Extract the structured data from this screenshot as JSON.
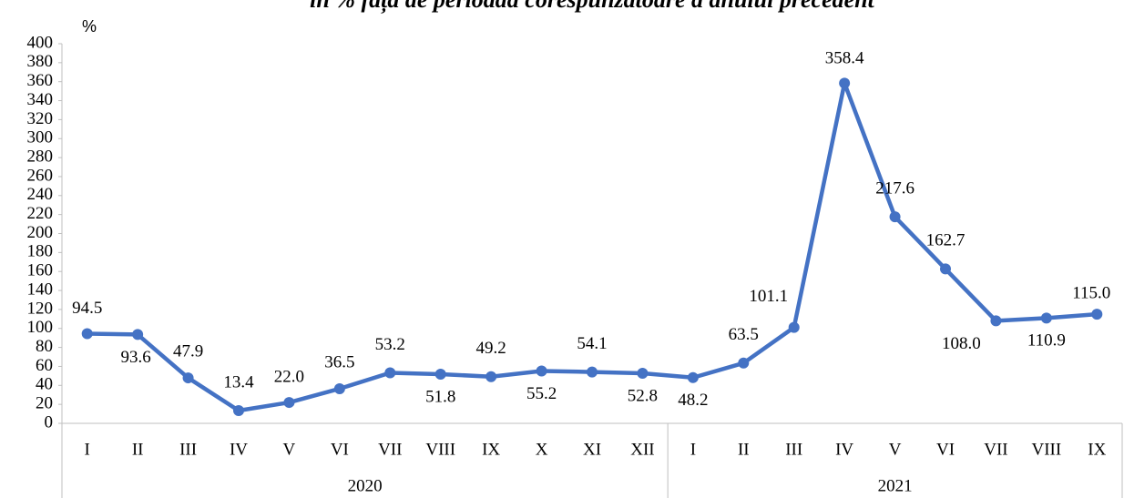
{
  "chart_data": {
    "type": "line",
    "title": "în % față de perioada corespunzătoare a anului precedent",
    "y_axis_label": "%",
    "categories": [
      "I",
      "II",
      "III",
      "IV",
      "V",
      "VI",
      "VII",
      "VIII",
      "IX",
      "X",
      "XI",
      "XII",
      "I",
      "II",
      "III",
      "IV",
      "V",
      "VI",
      "VII",
      "VIII",
      "IX"
    ],
    "groups": [
      {
        "label": "2020",
        "count": 12
      },
      {
        "label": "2021",
        "count": 9
      }
    ],
    "series": [
      {
        "name": "",
        "color": "#4472c4",
        "values": [
          94.5,
          93.6,
          47.9,
          13.4,
          22.0,
          36.5,
          53.2,
          51.8,
          49.2,
          55.2,
          54.1,
          52.8,
          48.2,
          63.5,
          101.1,
          358.4,
          217.6,
          162.7,
          108.0,
          110.9,
          115.0
        ],
        "value_labels": [
          "94.5",
          "93.6",
          "47.9",
          "13.4",
          "22.0",
          "36.5",
          "53.2",
          "51.8",
          "49.2",
          "55.2",
          "54.1",
          "52.8",
          "48.2",
          "63.5",
          "101.1",
          "358.4",
          "217.6",
          "162.7",
          "108.0",
          "110.9",
          "115.0"
        ]
      }
    ],
    "ylim": [
      0,
      400
    ],
    "yticks": [
      0,
      20,
      40,
      60,
      80,
      100,
      120,
      140,
      160,
      180,
      200,
      220,
      240,
      260,
      280,
      300,
      320,
      340,
      360,
      380,
      400
    ],
    "grid": false
  }
}
